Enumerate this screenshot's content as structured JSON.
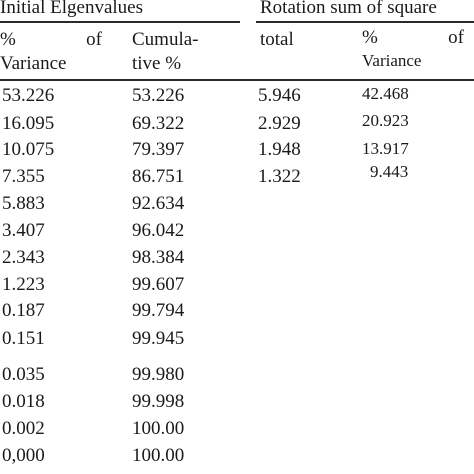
{
  "headers": {
    "group1": "Initial Elgenvalues",
    "group2": "Rotation sum of square",
    "pct_variance_1": {
      "symbol": "%",
      "of": "of",
      "word": "Variance"
    },
    "cumulative": {
      "line1": "Cumula-",
      "line2": "tive %"
    },
    "total": "total",
    "pct_variance_2": {
      "symbol": "%",
      "of": "of",
      "word": "Variance"
    }
  },
  "initial_rows": [
    {
      "pct": "53.226",
      "cum": "53.226"
    },
    {
      "pct": "16.095",
      "cum": "69.322"
    },
    {
      "pct": "10.075",
      "cum": "79.397"
    },
    {
      "pct": "7.355",
      "cum": "86.751"
    },
    {
      "pct": "5.883",
      "cum": "92.634"
    },
    {
      "pct": "3.407",
      "cum": "96.042"
    },
    {
      "pct": "2.343",
      "cum": "98.384"
    },
    {
      "pct": "1.223",
      "cum": "99.607"
    },
    {
      "pct": "0.187",
      "cum": "99.794"
    },
    {
      "pct": "0.151",
      "cum": "99.945"
    },
    {
      "pct": "0.035",
      "cum": "99.980"
    },
    {
      "pct": "0.018",
      "cum": "99.998"
    },
    {
      "pct": "0.002",
      "cum": "100.00"
    },
    {
      "pct": "0,000",
      "cum": "100.00"
    }
  ],
  "rotation_rows": [
    {
      "total": "5.946",
      "pct": "42.468"
    },
    {
      "total": "2.929",
      "pct": "20.923"
    },
    {
      "total": "1.948",
      "pct": "13.917"
    },
    {
      "total": "1.322",
      "pct": "9.443"
    }
  ]
}
